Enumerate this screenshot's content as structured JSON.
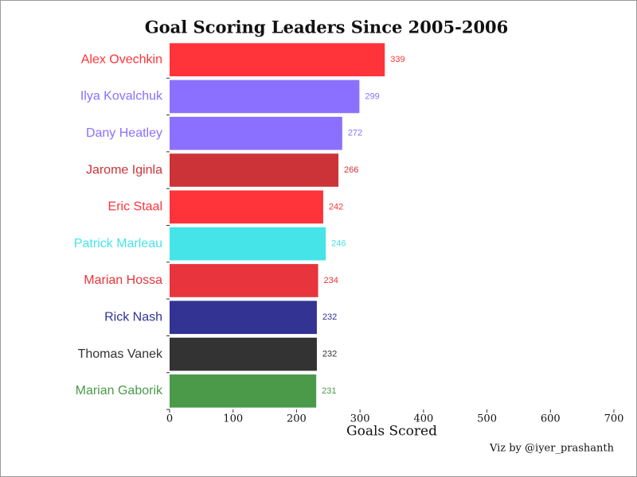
{
  "chart_data": {
    "type": "hbar",
    "title": "Goal Scoring Leaders Since 2005-2006",
    "x_label": "Goals Scored",
    "caption": "Viz by @iyer_prashanth",
    "categories": [
      "Alex Ovechkin",
      "Ilya Kovalchuk",
      "Dany Heatley",
      "Jarome Iginla",
      "Eric Staal",
      "Patrick Marleau",
      "Marian Hossa",
      "Rick Nash",
      "Thomas Vanek",
      "Marian Gaborik"
    ],
    "values": [
      339,
      299,
      272,
      266,
      242,
      246,
      234,
      232,
      232,
      231
    ],
    "colors": [
      "#ff333a",
      "#8b70ff",
      "#8b70ff",
      "#cc3338",
      "#ff333a",
      "#45e4e8",
      "#e8343c",
      "#333394",
      "#333333",
      "#4a9a4a"
    ],
    "xlim": [
      0,
      700
    ],
    "xticks": [
      0,
      100,
      200,
      300,
      400,
      500,
      600,
      700
    ]
  }
}
